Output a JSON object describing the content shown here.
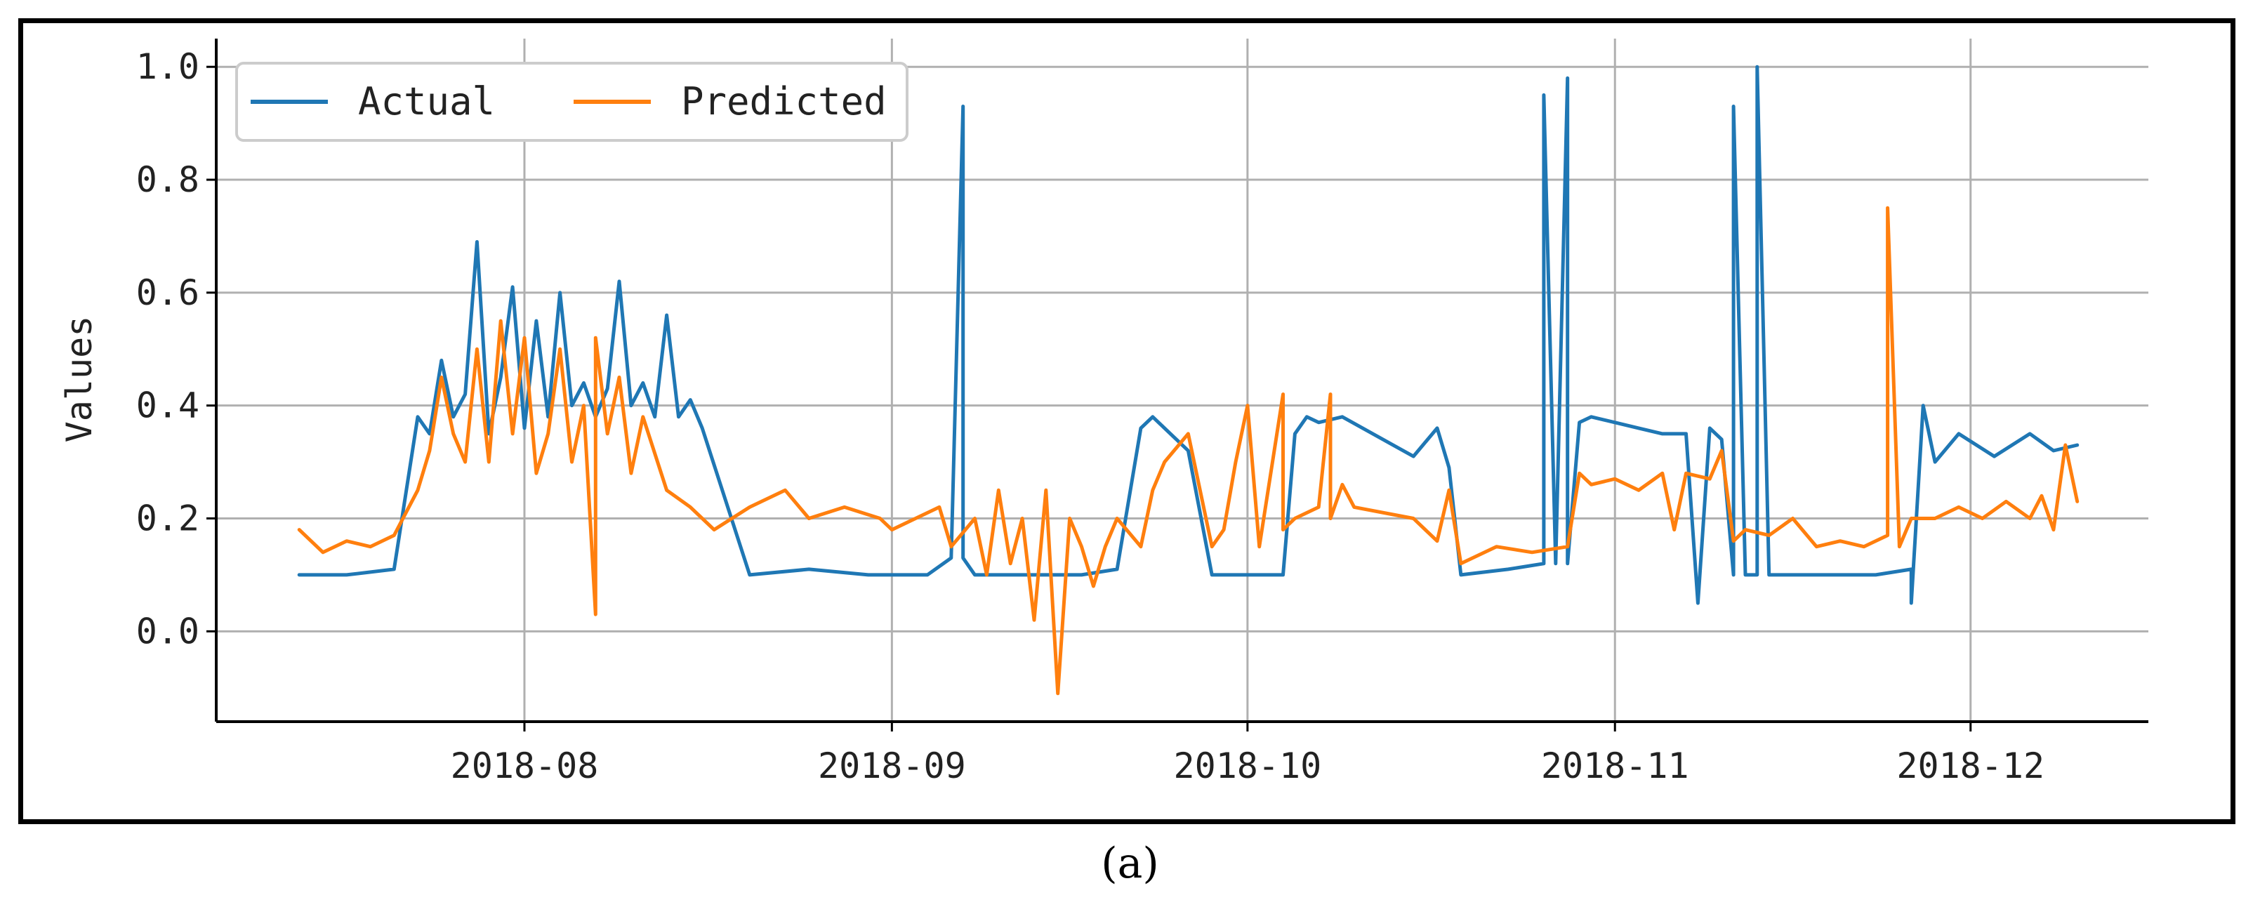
{
  "caption": "(a)",
  "chart_data": {
    "type": "line",
    "ylabel": "Values",
    "xlabel": "",
    "ylim": [
      -0.16,
      1.05
    ],
    "xlim": [
      "2018-07-06",
      "2018-12-16"
    ],
    "yticks": [
      0.0,
      0.2,
      0.4,
      0.6,
      0.8,
      1.0
    ],
    "ytick_labels": [
      "0.0",
      "0.2",
      "0.4",
      "0.6",
      "0.8",
      "1.0"
    ],
    "xticks": [
      "2018-08-01",
      "2018-09-01",
      "2018-10-01",
      "2018-11-01",
      "2018-12-01"
    ],
    "xtick_labels": [
      "2018-08",
      "2018-09",
      "2018-10",
      "2018-11",
      "2018-12"
    ],
    "grid": true,
    "legend_position": "top-left",
    "colors": {
      "Actual": "#1f77b4",
      "Predicted": "#ff7f0e"
    },
    "series": [
      {
        "name": "Actual",
        "x": [
          "2018-07-13",
          "2018-07-17",
          "2018-07-21",
          "2018-07-23",
          "2018-07-24",
          "2018-07-25",
          "2018-07-26",
          "2018-07-27",
          "2018-07-28",
          "2018-07-29",
          "2018-07-30",
          "2018-07-31",
          "2018-08-01",
          "2018-08-02",
          "2018-08-03",
          "2018-08-04",
          "2018-08-05",
          "2018-08-06",
          "2018-08-07",
          "2018-08-08",
          "2018-08-09",
          "2018-08-10",
          "2018-08-11",
          "2018-08-12",
          "2018-08-13",
          "2018-08-14",
          "2018-08-15",
          "2018-08-16",
          "2018-08-20",
          "2018-08-25",
          "2018-08-30",
          "2018-09-04",
          "2018-09-06",
          "2018-09-07",
          "2018-09-07",
          "2018-09-08",
          "2018-09-12",
          "2018-09-17",
          "2018-09-20",
          "2018-09-22",
          "2018-09-23",
          "2018-09-24",
          "2018-09-26",
          "2018-09-28",
          "2018-09-29",
          "2018-10-02",
          "2018-10-04",
          "2018-10-05",
          "2018-10-06",
          "2018-10-07",
          "2018-10-09",
          "2018-10-15",
          "2018-10-17",
          "2018-10-18",
          "2018-10-19",
          "2018-10-23",
          "2018-10-26",
          "2018-10-26",
          "2018-10-27",
          "2018-10-28",
          "2018-10-28",
          "2018-10-29",
          "2018-10-30",
          "2018-11-01",
          "2018-11-03",
          "2018-11-05",
          "2018-11-07",
          "2018-11-08",
          "2018-11-09",
          "2018-11-10",
          "2018-11-11",
          "2018-11-11",
          "2018-11-12",
          "2018-11-13",
          "2018-11-13",
          "2018-11-14",
          "2018-11-18",
          "2018-11-23",
          "2018-11-26",
          "2018-11-26",
          "2018-11-27",
          "2018-11-28",
          "2018-11-30",
          "2018-12-03",
          "2018-12-06",
          "2018-12-08",
          "2018-12-10"
        ],
        "y": [
          0.1,
          0.1,
          0.11,
          0.38,
          0.35,
          0.48,
          0.38,
          0.42,
          0.69,
          0.35,
          0.45,
          0.61,
          0.36,
          0.55,
          0.38,
          0.6,
          0.4,
          0.44,
          0.38,
          0.43,
          0.62,
          0.4,
          0.44,
          0.38,
          0.56,
          0.38,
          0.41,
          0.36,
          0.1,
          0.11,
          0.1,
          0.1,
          0.13,
          0.93,
          0.13,
          0.1,
          0.1,
          0.1,
          0.11,
          0.36,
          0.38,
          0.36,
          0.32,
          0.1,
          0.1,
          0.1,
          0.1,
          0.35,
          0.38,
          0.37,
          0.38,
          0.31,
          0.36,
          0.29,
          0.1,
          0.11,
          0.12,
          0.95,
          0.12,
          0.98,
          0.12,
          0.37,
          0.38,
          0.37,
          0.36,
          0.35,
          0.35,
          0.05,
          0.36,
          0.34,
          0.1,
          0.93,
          0.1,
          0.1,
          1.0,
          0.1,
          0.1,
          0.1,
          0.11,
          0.05,
          0.4,
          0.3,
          0.35,
          0.31,
          0.35,
          0.32,
          0.33
        ]
      },
      {
        "name": "Predicted",
        "x": [
          "2018-07-13",
          "2018-07-15",
          "2018-07-17",
          "2018-07-19",
          "2018-07-21",
          "2018-07-23",
          "2018-07-24",
          "2018-07-25",
          "2018-07-26",
          "2018-07-27",
          "2018-07-28",
          "2018-07-29",
          "2018-07-30",
          "2018-07-31",
          "2018-08-01",
          "2018-08-02",
          "2018-08-03",
          "2018-08-04",
          "2018-08-05",
          "2018-08-06",
          "2018-08-07",
          "2018-08-07",
          "2018-08-08",
          "2018-08-09",
          "2018-08-10",
          "2018-08-11",
          "2018-08-13",
          "2018-08-15",
          "2018-08-17",
          "2018-08-20",
          "2018-08-23",
          "2018-08-25",
          "2018-08-28",
          "2018-08-31",
          "2018-09-01",
          "2018-09-03",
          "2018-09-05",
          "2018-09-06",
          "2018-09-08",
          "2018-09-09",
          "2018-09-10",
          "2018-09-11",
          "2018-09-12",
          "2018-09-13",
          "2018-09-14",
          "2018-09-15",
          "2018-09-16",
          "2018-09-17",
          "2018-09-18",
          "2018-09-19",
          "2018-09-20",
          "2018-09-22",
          "2018-09-23",
          "2018-09-24",
          "2018-09-26",
          "2018-09-27",
          "2018-09-28",
          "2018-09-29",
          "2018-09-30",
          "2018-10-01",
          "2018-10-02",
          "2018-10-04",
          "2018-10-04",
          "2018-10-05",
          "2018-10-07",
          "2018-10-08",
          "2018-10-08",
          "2018-10-09",
          "2018-10-10",
          "2018-10-15",
          "2018-10-17",
          "2018-10-18",
          "2018-10-19",
          "2018-10-22",
          "2018-10-25",
          "2018-10-28",
          "2018-10-29",
          "2018-10-30",
          "2018-11-01",
          "2018-11-03",
          "2018-11-05",
          "2018-11-06",
          "2018-11-07",
          "2018-11-09",
          "2018-11-10",
          "2018-11-11",
          "2018-11-12",
          "2018-11-14",
          "2018-11-16",
          "2018-11-18",
          "2018-11-20",
          "2018-11-22",
          "2018-11-24",
          "2018-11-24",
          "2018-11-25",
          "2018-11-26",
          "2018-11-28",
          "2018-11-30",
          "2018-12-02",
          "2018-12-04",
          "2018-12-06",
          "2018-12-07",
          "2018-12-08",
          "2018-12-09",
          "2018-12-10"
        ],
        "y": [
          0.18,
          0.14,
          0.16,
          0.15,
          0.17,
          0.25,
          0.32,
          0.45,
          0.35,
          0.3,
          0.5,
          0.3,
          0.55,
          0.35,
          0.52,
          0.28,
          0.35,
          0.5,
          0.3,
          0.4,
          0.03,
          0.52,
          0.35,
          0.45,
          0.28,
          0.38,
          0.25,
          0.22,
          0.18,
          0.22,
          0.25,
          0.2,
          0.22,
          0.2,
          0.18,
          0.2,
          0.22,
          0.15,
          0.2,
          0.1,
          0.25,
          0.12,
          0.2,
          0.02,
          0.25,
          -0.11,
          0.2,
          0.15,
          0.08,
          0.15,
          0.2,
          0.15,
          0.25,
          0.3,
          0.35,
          0.25,
          0.15,
          0.18,
          0.3,
          0.4,
          0.15,
          0.42,
          0.18,
          0.2,
          0.22,
          0.42,
          0.2,
          0.26,
          0.22,
          0.2,
          0.16,
          0.25,
          0.12,
          0.15,
          0.14,
          0.15,
          0.28,
          0.26,
          0.27,
          0.25,
          0.28,
          0.18,
          0.28,
          0.27,
          0.32,
          0.16,
          0.18,
          0.17,
          0.2,
          0.15,
          0.16,
          0.15,
          0.17,
          0.75,
          0.15,
          0.2,
          0.2,
          0.22,
          0.2,
          0.23,
          0.2,
          0.24,
          0.18,
          0.33,
          0.23
        ]
      }
    ]
  }
}
